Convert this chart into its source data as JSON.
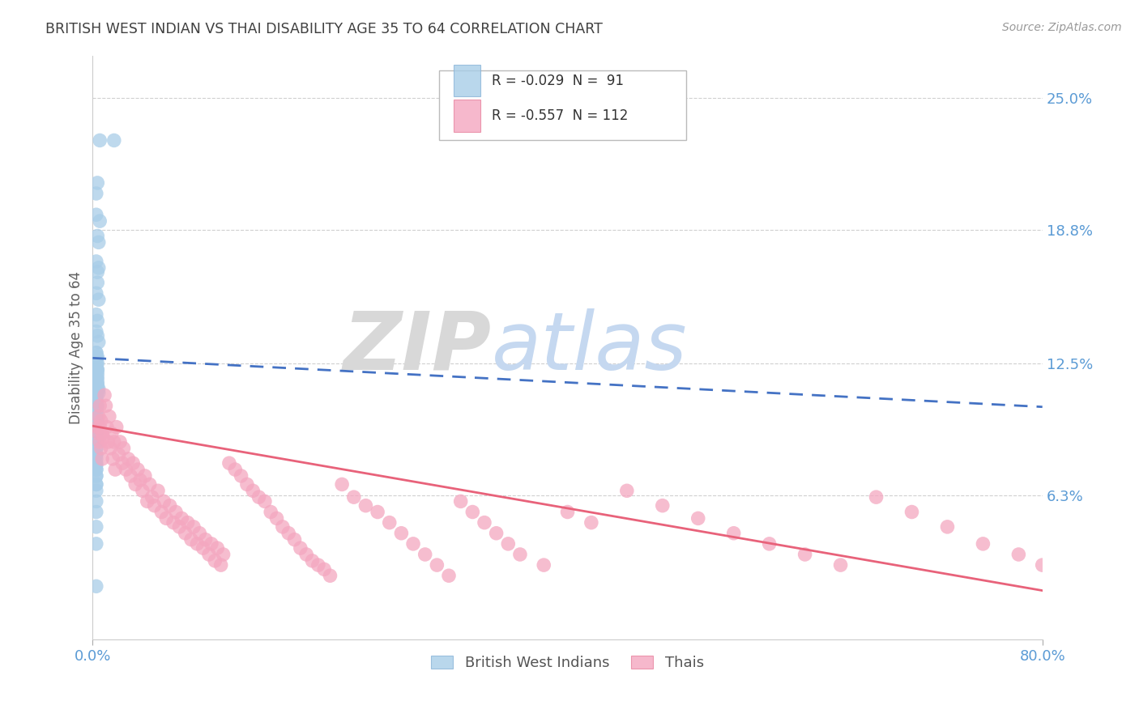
{
  "title": "BRITISH WEST INDIAN VS THAI DISABILITY AGE 35 TO 64 CORRELATION CHART",
  "source": "Source: ZipAtlas.com",
  "ylabel": "Disability Age 35 to 64",
  "ytick_labels": [
    "25.0%",
    "18.8%",
    "12.5%",
    "6.3%"
  ],
  "ytick_values": [
    0.25,
    0.188,
    0.125,
    0.063
  ],
  "xlim": [
    0.0,
    0.8
  ],
  "ylim": [
    -0.005,
    0.27
  ],
  "legend_label1": "British West Indians",
  "legend_label2": "Thais",
  "blue_color": "#a8cde8",
  "pink_color": "#f4a7c0",
  "blue_line_color": "#4472c4",
  "pink_line_color": "#e8627a",
  "watermark_zip_color": "#d8d8d8",
  "watermark_atlas_color": "#c5d8f0",
  "title_color": "#404040",
  "axis_label_color": "#606060",
  "tick_color": "#5b9bd5",
  "grid_color": "#d0d0d0",
  "background_color": "#ffffff",
  "bwi_trendline_x": [
    0.0,
    0.8
  ],
  "bwi_trendline_y": [
    0.1275,
    0.1045
  ],
  "thai_trendline_x": [
    0.0,
    0.8
  ],
  "thai_trendline_y": [
    0.0955,
    0.018
  ],
  "bwi_x": [
    0.006,
    0.018,
    0.004,
    0.003,
    0.003,
    0.006,
    0.004,
    0.005,
    0.003,
    0.005,
    0.004,
    0.004,
    0.003,
    0.005,
    0.003,
    0.004,
    0.003,
    0.004,
    0.005,
    0.003,
    0.003,
    0.004,
    0.003,
    0.004,
    0.003,
    0.004,
    0.003,
    0.005,
    0.003,
    0.003,
    0.004,
    0.003,
    0.004,
    0.003,
    0.004,
    0.005,
    0.003,
    0.004,
    0.003,
    0.004,
    0.003,
    0.003,
    0.004,
    0.003,
    0.003,
    0.003,
    0.004,
    0.003,
    0.003,
    0.004,
    0.003,
    0.003,
    0.003,
    0.004,
    0.004,
    0.003,
    0.003,
    0.003,
    0.003,
    0.004,
    0.003,
    0.003,
    0.003,
    0.003,
    0.003,
    0.003,
    0.003,
    0.004,
    0.003,
    0.003,
    0.003,
    0.003,
    0.003,
    0.003,
    0.003,
    0.003,
    0.003,
    0.003,
    0.003,
    0.003,
    0.003,
    0.003,
    0.003,
    0.003,
    0.003,
    0.003,
    0.003,
    0.003,
    0.003,
    0.003
  ],
  "bwi_y": [
    0.23,
    0.23,
    0.21,
    0.205,
    0.195,
    0.192,
    0.185,
    0.182,
    0.173,
    0.17,
    0.168,
    0.163,
    0.158,
    0.155,
    0.148,
    0.145,
    0.14,
    0.138,
    0.135,
    0.13,
    0.128,
    0.125,
    0.123,
    0.12,
    0.118,
    0.116,
    0.115,
    0.113,
    0.128,
    0.125,
    0.122,
    0.12,
    0.118,
    0.115,
    0.113,
    0.111,
    0.13,
    0.128,
    0.125,
    0.122,
    0.118,
    0.116,
    0.113,
    0.11,
    0.108,
    0.115,
    0.112,
    0.11,
    0.107,
    0.105,
    0.102,
    0.1,
    0.118,
    0.115,
    0.112,
    0.109,
    0.106,
    0.103,
    0.1,
    0.097,
    0.105,
    0.102,
    0.1,
    0.098,
    0.095,
    0.092,
    0.09,
    0.088,
    0.085,
    0.082,
    0.08,
    0.077,
    0.075,
    0.072,
    0.068,
    0.095,
    0.092,
    0.088,
    0.085,
    0.082,
    0.078,
    0.075,
    0.072,
    0.068,
    0.065,
    0.06,
    0.055,
    0.048,
    0.04,
    0.02
  ],
  "thai_x": [
    0.004,
    0.005,
    0.005,
    0.006,
    0.006,
    0.007,
    0.007,
    0.008,
    0.008,
    0.009,
    0.01,
    0.011,
    0.012,
    0.013,
    0.014,
    0.015,
    0.016,
    0.017,
    0.018,
    0.019,
    0.02,
    0.022,
    0.023,
    0.025,
    0.026,
    0.028,
    0.03,
    0.032,
    0.034,
    0.036,
    0.038,
    0.04,
    0.042,
    0.044,
    0.046,
    0.048,
    0.05,
    0.052,
    0.055,
    0.058,
    0.06,
    0.062,
    0.065,
    0.068,
    0.07,
    0.073,
    0.075,
    0.078,
    0.08,
    0.083,
    0.085,
    0.088,
    0.09,
    0.093,
    0.095,
    0.098,
    0.1,
    0.103,
    0.105,
    0.108,
    0.11,
    0.115,
    0.12,
    0.125,
    0.13,
    0.135,
    0.14,
    0.145,
    0.15,
    0.155,
    0.16,
    0.165,
    0.17,
    0.175,
    0.18,
    0.185,
    0.19,
    0.195,
    0.2,
    0.21,
    0.22,
    0.23,
    0.24,
    0.25,
    0.26,
    0.27,
    0.28,
    0.29,
    0.3,
    0.31,
    0.32,
    0.33,
    0.34,
    0.35,
    0.36,
    0.38,
    0.4,
    0.42,
    0.45,
    0.48,
    0.51,
    0.54,
    0.57,
    0.6,
    0.63,
    0.66,
    0.69,
    0.72,
    0.75,
    0.78,
    0.8,
    0.006
  ],
  "thai_y": [
    0.095,
    0.1,
    0.092,
    0.105,
    0.088,
    0.098,
    0.085,
    0.092,
    0.08,
    0.09,
    0.11,
    0.105,
    0.095,
    0.088,
    0.1,
    0.085,
    0.092,
    0.08,
    0.088,
    0.075,
    0.095,
    0.082,
    0.088,
    0.078,
    0.085,
    0.075,
    0.08,
    0.072,
    0.078,
    0.068,
    0.075,
    0.07,
    0.065,
    0.072,
    0.06,
    0.068,
    0.062,
    0.058,
    0.065,
    0.055,
    0.06,
    0.052,
    0.058,
    0.05,
    0.055,
    0.048,
    0.052,
    0.045,
    0.05,
    0.042,
    0.048,
    0.04,
    0.045,
    0.038,
    0.042,
    0.035,
    0.04,
    0.032,
    0.038,
    0.03,
    0.035,
    0.078,
    0.075,
    0.072,
    0.068,
    0.065,
    0.062,
    0.06,
    0.055,
    0.052,
    0.048,
    0.045,
    0.042,
    0.038,
    0.035,
    0.032,
    0.03,
    0.028,
    0.025,
    0.068,
    0.062,
    0.058,
    0.055,
    0.05,
    0.045,
    0.04,
    0.035,
    0.03,
    0.025,
    0.06,
    0.055,
    0.05,
    0.045,
    0.04,
    0.035,
    0.03,
    0.055,
    0.05,
    0.065,
    0.058,
    0.052,
    0.045,
    0.04,
    0.035,
    0.03,
    0.062,
    0.055,
    0.048,
    0.04,
    0.035,
    0.03,
    0.095
  ]
}
